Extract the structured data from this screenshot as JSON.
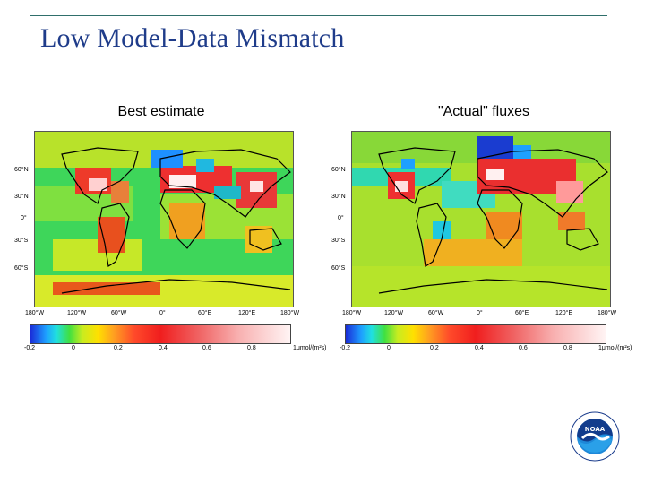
{
  "slide": {
    "title": "Low Model-Data Mismatch"
  },
  "panels": [
    {
      "title": "Best estimate",
      "lat_labels": [
        "60°N",
        "30°N",
        "0°",
        "30°S",
        "60°S"
      ],
      "lon_labels": [
        "180°W",
        "120°W",
        "60°W",
        "0°",
        "60°E",
        "120°E",
        "180°W"
      ],
      "colorbar": {
        "ticks": [
          "-0.2",
          "0",
          "0.2",
          "0.4",
          "0.6",
          "0.8"
        ],
        "unit": "1μmol/(m²s)"
      }
    },
    {
      "title": "\"Actual\" fluxes",
      "lat_labels": [
        "60°N",
        "30°N",
        "0°",
        "30°S",
        "60°S"
      ],
      "lon_labels": [
        "180°W",
        "120°W",
        "60°W",
        "0°",
        "60°E",
        "120°E",
        "180°W"
      ],
      "colorbar": {
        "ticks": [
          "-0.2",
          "0",
          "0.2",
          "0.4",
          "0.6",
          "0.8"
        ],
        "unit": "1μmol/(m²s)"
      }
    }
  ],
  "logo": {
    "text": "NOAA",
    "icon": "noaa-logo-icon"
  }
}
